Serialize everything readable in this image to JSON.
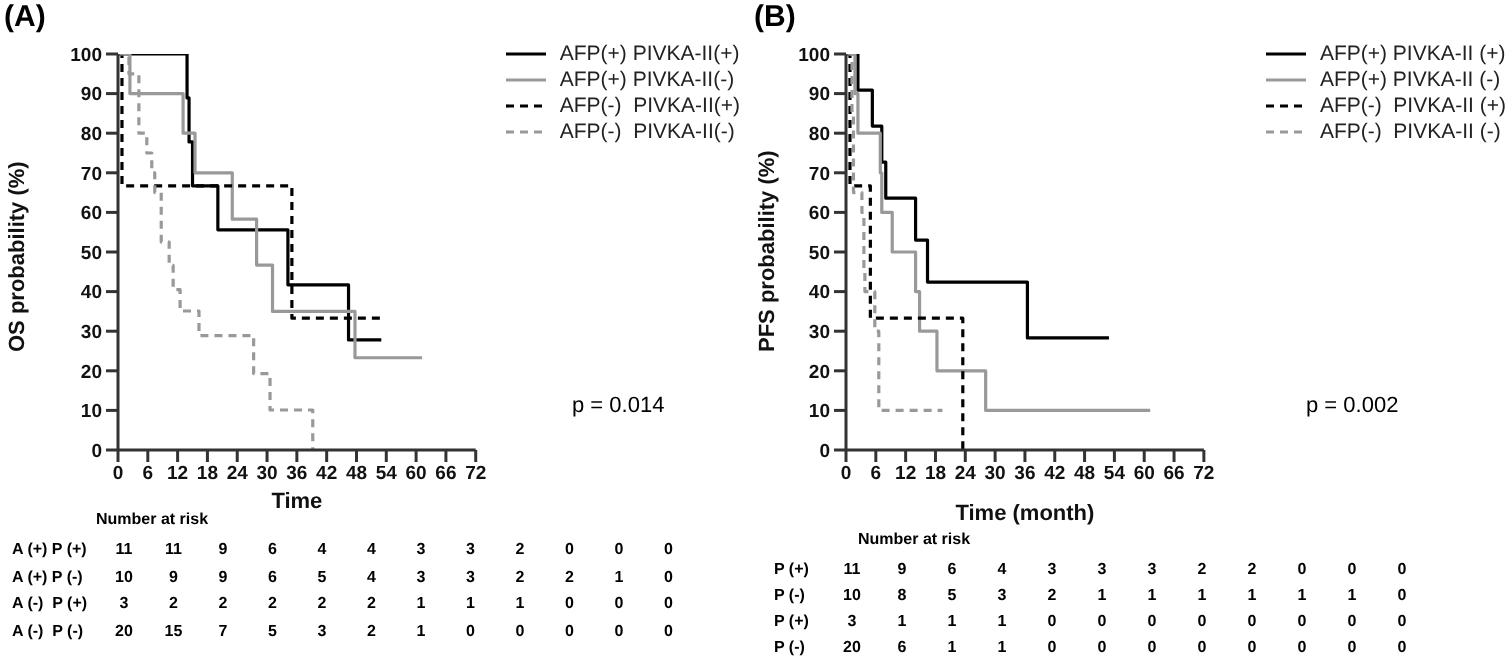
{
  "chart_data": [
    {
      "type": "step",
      "title": "(A)",
      "xlabel": "Time",
      "ylabel": "OS probability (%)",
      "xlim": [
        0,
        72
      ],
      "xticks": [
        0,
        6,
        12,
        18,
        24,
        30,
        36,
        42,
        48,
        54,
        60,
        66,
        72
      ],
      "ylim": [
        0,
        100
      ],
      "yticks": [
        0,
        10,
        20,
        30,
        40,
        50,
        60,
        70,
        80,
        90,
        100
      ],
      "legend": "top right",
      "series": [
        {
          "name": "AFP(+) PIVKA-II(+)",
          "color": "#000000",
          "x": [
            0,
            13.9,
            14.3,
            15,
            20.1,
            34.2,
            46.4,
            53
          ],
          "values": [
            100,
            88.9,
            77.8,
            66.7,
            55.6,
            41.7,
            27.8,
            27.8
          ]
        },
        {
          "name": "AFP(+) PIVKA-II(-)",
          "color": "#999999",
          "x": [
            0,
            2.4,
            13.1,
            15.5,
            23,
            27.9,
            31.1,
            47.7,
            61.2
          ],
          "values": [
            100,
            90,
            80,
            70,
            58.3,
            46.7,
            35,
            23.3,
            23.3
          ]
        },
        {
          "name": "AFP(-)  PIVKA-II(+)",
          "color": "#000000",
          "line_style": "dashed",
          "x": [
            0,
            0.8,
            35,
            53.2
          ],
          "values": [
            100,
            66.7,
            33.3,
            33.3
          ]
        },
        {
          "name": "AFP(-)  PIVKA-II(-)",
          "color": "#999999",
          "line_style": "dashed",
          "x": [
            0,
            2.2,
            4.2,
            5.8,
            6.8,
            7.4,
            8.7,
            10.3,
            11.1,
            12.5,
            16.3,
            27.3,
            30.6,
            39.2
          ],
          "values": [
            100,
            95,
            80,
            75,
            70,
            65,
            52.5,
            46.6,
            40.5,
            35.1,
            28.9,
            19.3,
            10.1,
            0
          ]
        }
      ],
      "annotations": [
        "p = 0.014",
        "Number at risk",
        "A (+) P (+)\t11\t11\t9\t6\t4\t4\t3\t3\t2\t0\t0\t0",
        "A (+) P (-)\t10\t9\t9\t6\t5\t4\t3\t3\t2\t2\t1\t0",
        "A (-)  P (+)\t3\t2\t2\t2\t2\t2\t1\t1\t1\t0\t0\t0",
        "A (-)  P (-)\t20\t15\t7\t5\t3\t2\t1\t0\t0\t0\t0\t0"
      ]
    },
    {
      "type": "step",
      "title": "(B)",
      "xlabel": "Time (month)",
      "ylabel": "PFS probability (%)",
      "xlim": [
        0,
        72
      ],
      "xticks": [
        0,
        6,
        12,
        18,
        24,
        30,
        36,
        42,
        48,
        54,
        60,
        66,
        72
      ],
      "ylim": [
        0,
        100
      ],
      "yticks": [
        0,
        10,
        20,
        30,
        40,
        50,
        60,
        70,
        80,
        90,
        100
      ],
      "legend": "top right",
      "series": [
        {
          "name": "AFP(+) PIVKA-II (+)",
          "color": "#000000",
          "x": [
            0,
            2.4,
            5.3,
            7.2,
            8,
            14,
            16.4,
            36.5,
            52.9
          ],
          "values": [
            100,
            90.9,
            81.8,
            72.7,
            63.6,
            53,
            42.4,
            28.3,
            28.3
          ]
        },
        {
          "name": "AFP(+) PIVKA-II (-)",
          "color": "#999999",
          "x": [
            0,
            1.8,
            2.4,
            6.9,
            7.2,
            9.3,
            14,
            14.8,
            18.3,
            28.1,
            61.2
          ],
          "values": [
            100,
            90,
            80,
            70,
            60,
            50,
            40,
            30,
            20,
            10,
            10
          ]
        },
        {
          "name": "AFP(-)  PIVKA-II (+)",
          "color": "#000000",
          "line_style": "dashed",
          "x": [
            0,
            0.8,
            4.9,
            23.5
          ],
          "values": [
            100,
            66.7,
            33.3,
            0
          ]
        },
        {
          "name": "AFP(-)  PIVKA-II (-)",
          "color": "#999999",
          "line_style": "dashed",
          "x": [
            0,
            1.2,
            1.5,
            3.2,
            3.6,
            3.8,
            5.8,
            6.6,
            19.4
          ],
          "values": [
            100,
            85,
            65,
            60,
            45,
            40,
            30,
            10,
            10
          ]
        }
      ],
      "annotations": [
        "p = 0.002",
        "Number at risk",
        "P (+)\t11\t9\t6\t4\t3\t3\t3\t2\t2\t0\t0\t0",
        "P (-)\t10\t8\t5\t3\t2\t1\t1\t1\t1\t1\t1\t0",
        "P (+)\t3\t1\t1\t1\t0\t0\t0\t0\t0\t0\t0\t0",
        "P (-)\t20\t6\t1\t1\t0\t0\t0\t0\t0\t0\t0\t0"
      ]
    }
  ]
}
